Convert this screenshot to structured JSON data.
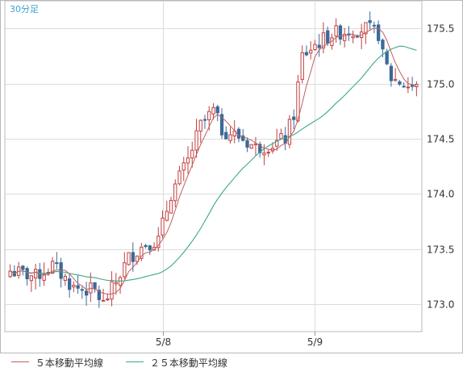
{
  "chart_data": {
    "type": "candlestick",
    "period_label": "30分足",
    "x_labels": [
      "5/8",
      "5/9"
    ],
    "y_ticks": [
      "173.0",
      "173.5",
      "174.0",
      "174.5",
      "175.0",
      "175.5"
    ],
    "ylim": [
      172.75,
      175.75
    ],
    "grid": true,
    "legend_position": "bottom-left",
    "series": [
      {
        "name": "５本移動平均線",
        "color": "#c06060"
      },
      {
        "name": "２５本移動平均線",
        "color": "#3aa88e"
      }
    ],
    "candle_colors": {
      "up": "#c04040",
      "down": "#3a6a9a"
    },
    "price_path": [
      [
        0,
        173.3
      ],
      [
        6,
        173.25
      ],
      [
        10,
        173.35
      ],
      [
        15,
        173.15
      ],
      [
        20,
        173.12
      ],
      [
        22,
        173.0
      ],
      [
        25,
        173.2
      ],
      [
        28,
        173.42
      ],
      [
        32,
        173.55
      ],
      [
        35,
        173.58
      ],
      [
        38,
        174.0
      ],
      [
        42,
        174.3
      ],
      [
        45,
        174.62
      ],
      [
        48,
        174.75
      ],
      [
        50,
        174.58
      ],
      [
        54,
        174.52
      ],
      [
        58,
        174.42
      ],
      [
        62,
        174.45
      ],
      [
        65,
        174.5
      ],
      [
        67,
        174.72
      ],
      [
        69,
        175.25
      ],
      [
        72,
        175.35
      ],
      [
        76,
        175.45
      ],
      [
        80,
        175.48
      ],
      [
        84,
        175.5
      ],
      [
        87,
        175.45
      ],
      [
        88,
        175.25
      ],
      [
        90,
        175.05
      ],
      [
        94,
        174.98
      ],
      [
        96,
        174.96
      ]
    ],
    "candle_count": 97,
    "date_boundaries": [
      36,
      72
    ]
  }
}
